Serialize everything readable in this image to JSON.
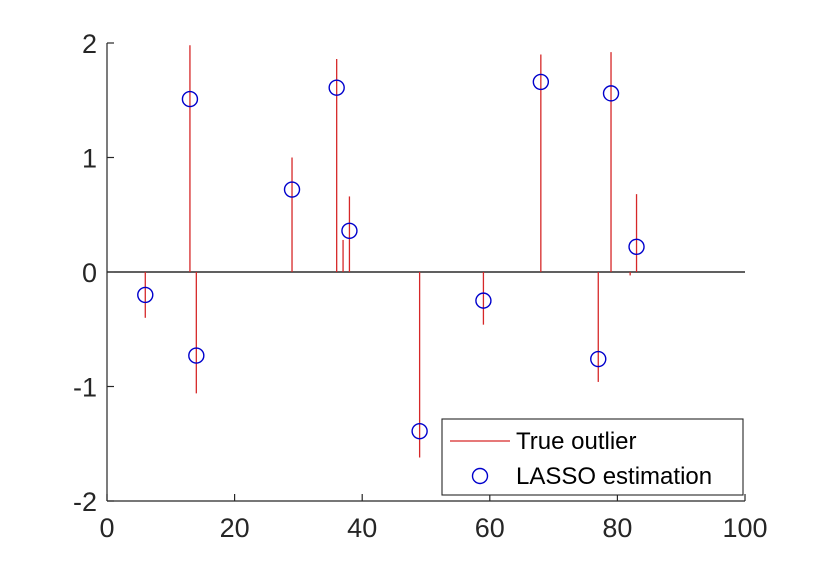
{
  "chart_data": {
    "type": "scatter",
    "title": "",
    "xlabel": "",
    "ylabel": "",
    "xlim": [
      0,
      100
    ],
    "ylim": [
      -2,
      2
    ],
    "xticks": [
      0,
      20,
      40,
      60,
      80,
      100
    ],
    "yticks": [
      -2,
      -1,
      0,
      1,
      2
    ],
    "x_tick_labels": [
      "0",
      "20",
      "40",
      "60",
      "80",
      "100"
    ],
    "y_tick_labels": [
      "-2",
      "-1",
      "0",
      "1",
      "2"
    ],
    "grid": false,
    "legend_position": "bottom-right",
    "zero_line": true,
    "series": [
      {
        "name": "True outlier",
        "kind": "stem",
        "color": "#d62728",
        "points": [
          {
            "x": 6,
            "y": -0.4
          },
          {
            "x": 13,
            "y": 1.98
          },
          {
            "x": 14,
            "y": -1.06
          },
          {
            "x": 29,
            "y": 1.0
          },
          {
            "x": 36,
            "y": 1.86
          },
          {
            "x": 37,
            "y": 0.28
          },
          {
            "x": 38,
            "y": 0.66
          },
          {
            "x": 49,
            "y": -1.62
          },
          {
            "x": 59,
            "y": -0.46
          },
          {
            "x": 68,
            "y": 1.9
          },
          {
            "x": 77,
            "y": -0.96
          },
          {
            "x": 79,
            "y": 1.92
          },
          {
            "x": 82,
            "y": -0.03
          },
          {
            "x": 83,
            "y": 0.68
          }
        ]
      },
      {
        "name": "LASSO estimation",
        "kind": "circle",
        "color": "#0000cc",
        "points": [
          {
            "x": 6,
            "y": -0.2
          },
          {
            "x": 13,
            "y": 1.51
          },
          {
            "x": 14,
            "y": -0.73
          },
          {
            "x": 29,
            "y": 0.72
          },
          {
            "x": 36,
            "y": 1.61
          },
          {
            "x": 38,
            "y": 0.36
          },
          {
            "x": 49,
            "y": -1.39
          },
          {
            "x": 59,
            "y": -0.25
          },
          {
            "x": 68,
            "y": 1.66
          },
          {
            "x": 77,
            "y": -0.76
          },
          {
            "x": 79,
            "y": 1.56
          },
          {
            "x": 83,
            "y": 0.22
          }
        ]
      }
    ]
  }
}
